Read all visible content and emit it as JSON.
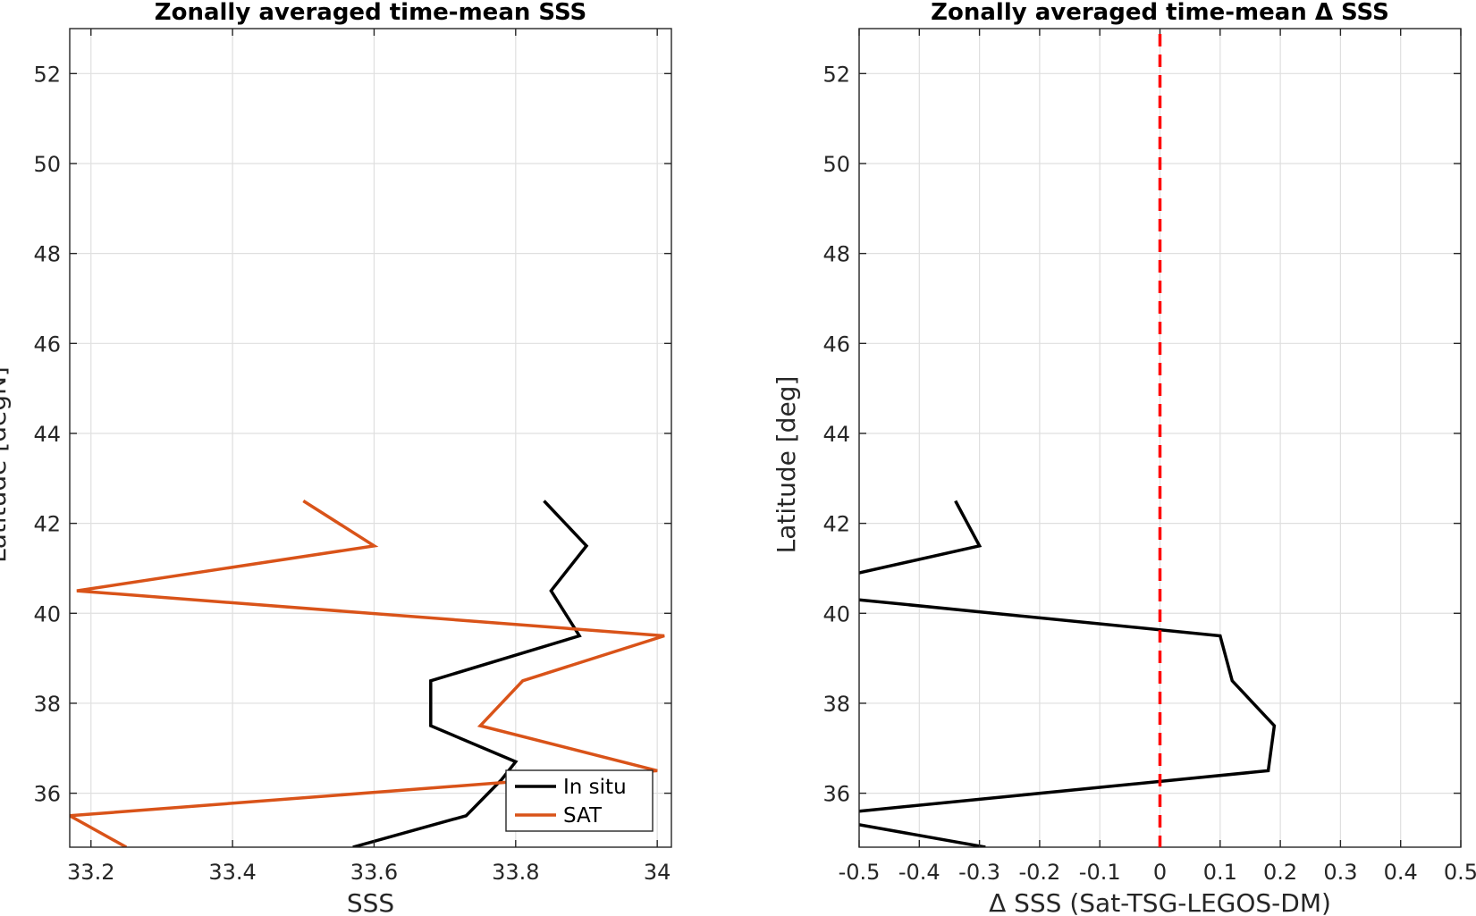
{
  "chart_data": [
    {
      "type": "line",
      "title": "Zonally averaged time-mean SSS",
      "xlabel": "SSS",
      "ylabel": "Latitude [degN]",
      "xlim": [
        33.17,
        34.02
      ],
      "ylim": [
        34.8,
        53
      ],
      "xticks": [
        33.2,
        33.4,
        33.6,
        33.8,
        34
      ],
      "xtick_labels": [
        "33.2",
        "33.4",
        "33.6",
        "33.8",
        "34"
      ],
      "yticks": [
        36,
        38,
        40,
        42,
        44,
        46,
        48,
        50,
        52
      ],
      "ytick_labels": [
        "36",
        "38",
        "40",
        "42",
        "44",
        "46",
        "48",
        "50",
        "52"
      ],
      "grid": true,
      "legend_position": "bottom-right",
      "series": [
        {
          "name": "In situ",
          "color": "#000000",
          "points": [
            [
              33.84,
              42.5
            ],
            [
              33.9,
              41.5
            ],
            [
              33.85,
              40.5
            ],
            [
              33.89,
              39.5
            ],
            [
              33.68,
              38.5
            ],
            [
              33.68,
              37.5
            ],
            [
              33.8,
              36.7
            ],
            [
              33.78,
              36.3
            ],
            [
              33.73,
              35.5
            ],
            [
              33.57,
              34.8
            ]
          ]
        },
        {
          "name": "SAT",
          "color": "#d95319",
          "points": [
            [
              33.5,
              42.5
            ],
            [
              33.6,
              41.5
            ],
            [
              33.18,
              40.5
            ],
            [
              34.01,
              39.5
            ],
            [
              33.81,
              38.5
            ],
            [
              33.75,
              37.5
            ],
            [
              34.0,
              36.5
            ],
            [
              33.17,
              35.5
            ],
            [
              33.25,
              34.8
            ]
          ]
        }
      ]
    },
    {
      "type": "line",
      "title": "Zonally averaged time-mean Δ SSS",
      "xlabel": "Δ SSS (Sat-TSG-LEGOS-DM)",
      "ylabel": "Latitude [deg]",
      "xlim": [
        -0.5,
        0.5
      ],
      "ylim": [
        34.8,
        53
      ],
      "xticks": [
        -0.5,
        -0.4,
        -0.3,
        -0.2,
        -0.1,
        0,
        0.1,
        0.2,
        0.3,
        0.4,
        0.5
      ],
      "xtick_labels": [
        "-0.5",
        "-0.4",
        "-0.3",
        "-0.2",
        "-0.1",
        "0",
        "0.1",
        "0.2",
        "0.3",
        "0.4",
        "0.5"
      ],
      "yticks": [
        36,
        38,
        40,
        42,
        44,
        46,
        48,
        50,
        52
      ],
      "ytick_labels": [
        "36",
        "38",
        "40",
        "42",
        "44",
        "46",
        "48",
        "50",
        "52"
      ],
      "grid": true,
      "reference_line": {
        "x": 0,
        "color": "#ff0000",
        "style": "dashed"
      },
      "series": [
        {
          "color": "#000000",
          "points": [
            [
              -0.34,
              42.5
            ],
            [
              -0.3,
              41.5
            ],
            [
              -0.5,
              40.9
            ]
          ]
        },
        {
          "color": "#000000",
          "points": [
            [
              -0.5,
              40.3
            ],
            [
              0.1,
              39.5
            ],
            [
              0.12,
              38.5
            ],
            [
              0.19,
              37.5
            ],
            [
              0.18,
              36.5
            ],
            [
              -0.5,
              35.6
            ]
          ]
        },
        {
          "color": "#000000",
          "points": [
            [
              -0.5,
              35.3
            ],
            [
              -0.29,
              34.8
            ]
          ]
        }
      ]
    }
  ]
}
